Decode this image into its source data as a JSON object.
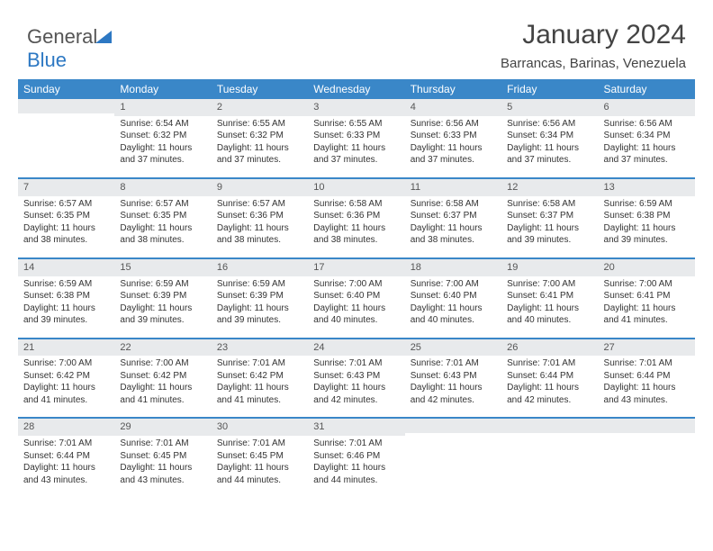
{
  "logo": {
    "text1": "General",
    "text2": "Blue"
  },
  "title": "January 2024",
  "subtitle": "Barrancas, Barinas, Venezuela",
  "colors": {
    "header_bg": "#3a87c8",
    "header_fg": "#ffffff",
    "daynum_bg": "#e8eaec",
    "week_border": "#3a87c8",
    "text": "#333333",
    "logo_gray": "#555555",
    "logo_blue": "#2d78c3",
    "page_bg": "#ffffff"
  },
  "day_headers": [
    "Sunday",
    "Monday",
    "Tuesday",
    "Wednesday",
    "Thursday",
    "Friday",
    "Saturday"
  ],
  "weeks": [
    [
      {
        "num": "",
        "sunrise": "",
        "sunset": "",
        "daylight": ""
      },
      {
        "num": "1",
        "sunrise": "Sunrise: 6:54 AM",
        "sunset": "Sunset: 6:32 PM",
        "daylight": "Daylight: 11 hours and 37 minutes."
      },
      {
        "num": "2",
        "sunrise": "Sunrise: 6:55 AM",
        "sunset": "Sunset: 6:32 PM",
        "daylight": "Daylight: 11 hours and 37 minutes."
      },
      {
        "num": "3",
        "sunrise": "Sunrise: 6:55 AM",
        "sunset": "Sunset: 6:33 PM",
        "daylight": "Daylight: 11 hours and 37 minutes."
      },
      {
        "num": "4",
        "sunrise": "Sunrise: 6:56 AM",
        "sunset": "Sunset: 6:33 PM",
        "daylight": "Daylight: 11 hours and 37 minutes."
      },
      {
        "num": "5",
        "sunrise": "Sunrise: 6:56 AM",
        "sunset": "Sunset: 6:34 PM",
        "daylight": "Daylight: 11 hours and 37 minutes."
      },
      {
        "num": "6",
        "sunrise": "Sunrise: 6:56 AM",
        "sunset": "Sunset: 6:34 PM",
        "daylight": "Daylight: 11 hours and 37 minutes."
      }
    ],
    [
      {
        "num": "7",
        "sunrise": "Sunrise: 6:57 AM",
        "sunset": "Sunset: 6:35 PM",
        "daylight": "Daylight: 11 hours and 38 minutes."
      },
      {
        "num": "8",
        "sunrise": "Sunrise: 6:57 AM",
        "sunset": "Sunset: 6:35 PM",
        "daylight": "Daylight: 11 hours and 38 minutes."
      },
      {
        "num": "9",
        "sunrise": "Sunrise: 6:57 AM",
        "sunset": "Sunset: 6:36 PM",
        "daylight": "Daylight: 11 hours and 38 minutes."
      },
      {
        "num": "10",
        "sunrise": "Sunrise: 6:58 AM",
        "sunset": "Sunset: 6:36 PM",
        "daylight": "Daylight: 11 hours and 38 minutes."
      },
      {
        "num": "11",
        "sunrise": "Sunrise: 6:58 AM",
        "sunset": "Sunset: 6:37 PM",
        "daylight": "Daylight: 11 hours and 38 minutes."
      },
      {
        "num": "12",
        "sunrise": "Sunrise: 6:58 AM",
        "sunset": "Sunset: 6:37 PM",
        "daylight": "Daylight: 11 hours and 39 minutes."
      },
      {
        "num": "13",
        "sunrise": "Sunrise: 6:59 AM",
        "sunset": "Sunset: 6:38 PM",
        "daylight": "Daylight: 11 hours and 39 minutes."
      }
    ],
    [
      {
        "num": "14",
        "sunrise": "Sunrise: 6:59 AM",
        "sunset": "Sunset: 6:38 PM",
        "daylight": "Daylight: 11 hours and 39 minutes."
      },
      {
        "num": "15",
        "sunrise": "Sunrise: 6:59 AM",
        "sunset": "Sunset: 6:39 PM",
        "daylight": "Daylight: 11 hours and 39 minutes."
      },
      {
        "num": "16",
        "sunrise": "Sunrise: 6:59 AM",
        "sunset": "Sunset: 6:39 PM",
        "daylight": "Daylight: 11 hours and 39 minutes."
      },
      {
        "num": "17",
        "sunrise": "Sunrise: 7:00 AM",
        "sunset": "Sunset: 6:40 PM",
        "daylight": "Daylight: 11 hours and 40 minutes."
      },
      {
        "num": "18",
        "sunrise": "Sunrise: 7:00 AM",
        "sunset": "Sunset: 6:40 PM",
        "daylight": "Daylight: 11 hours and 40 minutes."
      },
      {
        "num": "19",
        "sunrise": "Sunrise: 7:00 AM",
        "sunset": "Sunset: 6:41 PM",
        "daylight": "Daylight: 11 hours and 40 minutes."
      },
      {
        "num": "20",
        "sunrise": "Sunrise: 7:00 AM",
        "sunset": "Sunset: 6:41 PM",
        "daylight": "Daylight: 11 hours and 41 minutes."
      }
    ],
    [
      {
        "num": "21",
        "sunrise": "Sunrise: 7:00 AM",
        "sunset": "Sunset: 6:42 PM",
        "daylight": "Daylight: 11 hours and 41 minutes."
      },
      {
        "num": "22",
        "sunrise": "Sunrise: 7:00 AM",
        "sunset": "Sunset: 6:42 PM",
        "daylight": "Daylight: 11 hours and 41 minutes."
      },
      {
        "num": "23",
        "sunrise": "Sunrise: 7:01 AM",
        "sunset": "Sunset: 6:42 PM",
        "daylight": "Daylight: 11 hours and 41 minutes."
      },
      {
        "num": "24",
        "sunrise": "Sunrise: 7:01 AM",
        "sunset": "Sunset: 6:43 PM",
        "daylight": "Daylight: 11 hours and 42 minutes."
      },
      {
        "num": "25",
        "sunrise": "Sunrise: 7:01 AM",
        "sunset": "Sunset: 6:43 PM",
        "daylight": "Daylight: 11 hours and 42 minutes."
      },
      {
        "num": "26",
        "sunrise": "Sunrise: 7:01 AM",
        "sunset": "Sunset: 6:44 PM",
        "daylight": "Daylight: 11 hours and 42 minutes."
      },
      {
        "num": "27",
        "sunrise": "Sunrise: 7:01 AM",
        "sunset": "Sunset: 6:44 PM",
        "daylight": "Daylight: 11 hours and 43 minutes."
      }
    ],
    [
      {
        "num": "28",
        "sunrise": "Sunrise: 7:01 AM",
        "sunset": "Sunset: 6:44 PM",
        "daylight": "Daylight: 11 hours and 43 minutes."
      },
      {
        "num": "29",
        "sunrise": "Sunrise: 7:01 AM",
        "sunset": "Sunset: 6:45 PM",
        "daylight": "Daylight: 11 hours and 43 minutes."
      },
      {
        "num": "30",
        "sunrise": "Sunrise: 7:01 AM",
        "sunset": "Sunset: 6:45 PM",
        "daylight": "Daylight: 11 hours and 44 minutes."
      },
      {
        "num": "31",
        "sunrise": "Sunrise: 7:01 AM",
        "sunset": "Sunset: 6:46 PM",
        "daylight": "Daylight: 11 hours and 44 minutes."
      },
      {
        "num": "",
        "sunrise": "",
        "sunset": "",
        "daylight": ""
      },
      {
        "num": "",
        "sunrise": "",
        "sunset": "",
        "daylight": ""
      },
      {
        "num": "",
        "sunrise": "",
        "sunset": "",
        "daylight": ""
      }
    ]
  ]
}
